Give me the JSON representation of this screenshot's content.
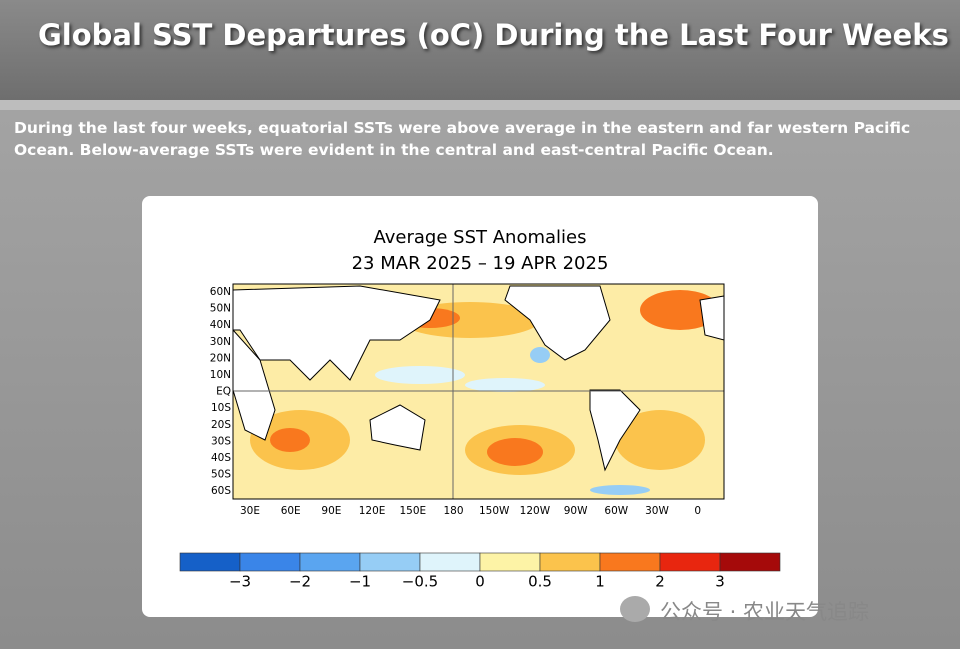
{
  "header": {
    "title": "Global SST Departures (oC) During the Last Four Weeks"
  },
  "description": "During the last four weeks, equatorial SSTs were above average in the eastern and far western Pacific Ocean. Below-average SSTs were evident in the central and east-central Pacific Ocean.",
  "figure": {
    "title": "Average SST Anomalies",
    "subtitle": "23 MAR 2025 – 19 APR 2025",
    "lat_labels": [
      "60N",
      "50N",
      "40N",
      "30N",
      "20N",
      "10N",
      "EQ",
      "10S",
      "20S",
      "30S",
      "40S",
      "50S",
      "60S"
    ],
    "lon_labels": [
      "30E",
      "60E",
      "90E",
      "120E",
      "150E",
      "180",
      "150W",
      "120W",
      "90W",
      "60W",
      "30W",
      "0"
    ],
    "colorbar": {
      "colors": [
        "#1560c8",
        "#3a85e8",
        "#5aa5f0",
        "#96cdf5",
        "#dff4fb",
        "#fdf3a6",
        "#fbc34c",
        "#f9781e",
        "#e8260f",
        "#a50a0a"
      ],
      "labels": [
        "−3",
        "−2",
        "−1",
        "−0.5",
        "0",
        "0.5",
        "1",
        "2",
        "3"
      ]
    }
  },
  "watermark": "公众号 · 农业天气追踪"
}
